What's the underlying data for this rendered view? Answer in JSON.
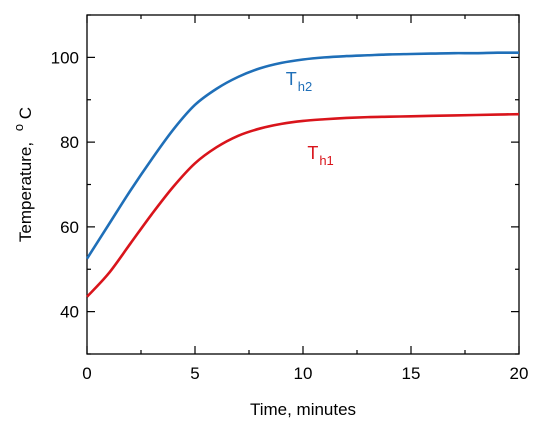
{
  "chart_data": {
    "type": "line",
    "xlabel": "Time, minutes",
    "ylabel": "Temperature,",
    "ylabel_unit_sup": "o",
    "ylabel_unit": "C",
    "xlim": [
      0,
      20
    ],
    "ylim": [
      30,
      110
    ],
    "x_ticks": [
      0,
      5,
      10,
      15,
      20
    ],
    "x_tick_labels": [
      "0",
      "5",
      "10",
      "15",
      "20"
    ],
    "y_ticks": [
      40,
      60,
      80,
      100
    ],
    "y_tick_labels": [
      "40",
      "60",
      "80",
      "100"
    ],
    "grid": false,
    "series": [
      {
        "name": "T_h2",
        "label_main": "T",
        "label_sub": "h2",
        "color": "#1f6fb8",
        "x": [
          0,
          1,
          2,
          3,
          4,
          5,
          6,
          7,
          8,
          9,
          10,
          11,
          12,
          13,
          14,
          15,
          16,
          17,
          18,
          19,
          20
        ],
        "values": [
          52.5,
          60.5,
          68.5,
          76,
          83,
          88.8,
          92.6,
          95.4,
          97.4,
          98.7,
          99.5,
          100,
          100.3,
          100.5,
          100.7,
          100.8,
          100.9,
          101,
          101,
          101.1,
          101.1
        ]
      },
      {
        "name": "T_h1",
        "label_main": "T",
        "label_sub": "h1",
        "color": "#d9141b",
        "x": [
          0,
          1,
          2,
          3,
          4,
          5,
          6,
          7,
          8,
          9,
          10,
          11,
          12,
          13,
          14,
          15,
          16,
          17,
          18,
          19,
          20
        ],
        "values": [
          43.5,
          49,
          56,
          63,
          69.5,
          75,
          78.8,
          81.5,
          83.2,
          84.3,
          85,
          85.4,
          85.7,
          85.9,
          86,
          86.1,
          86.2,
          86.3,
          86.4,
          86.5,
          86.6
        ]
      }
    ]
  }
}
